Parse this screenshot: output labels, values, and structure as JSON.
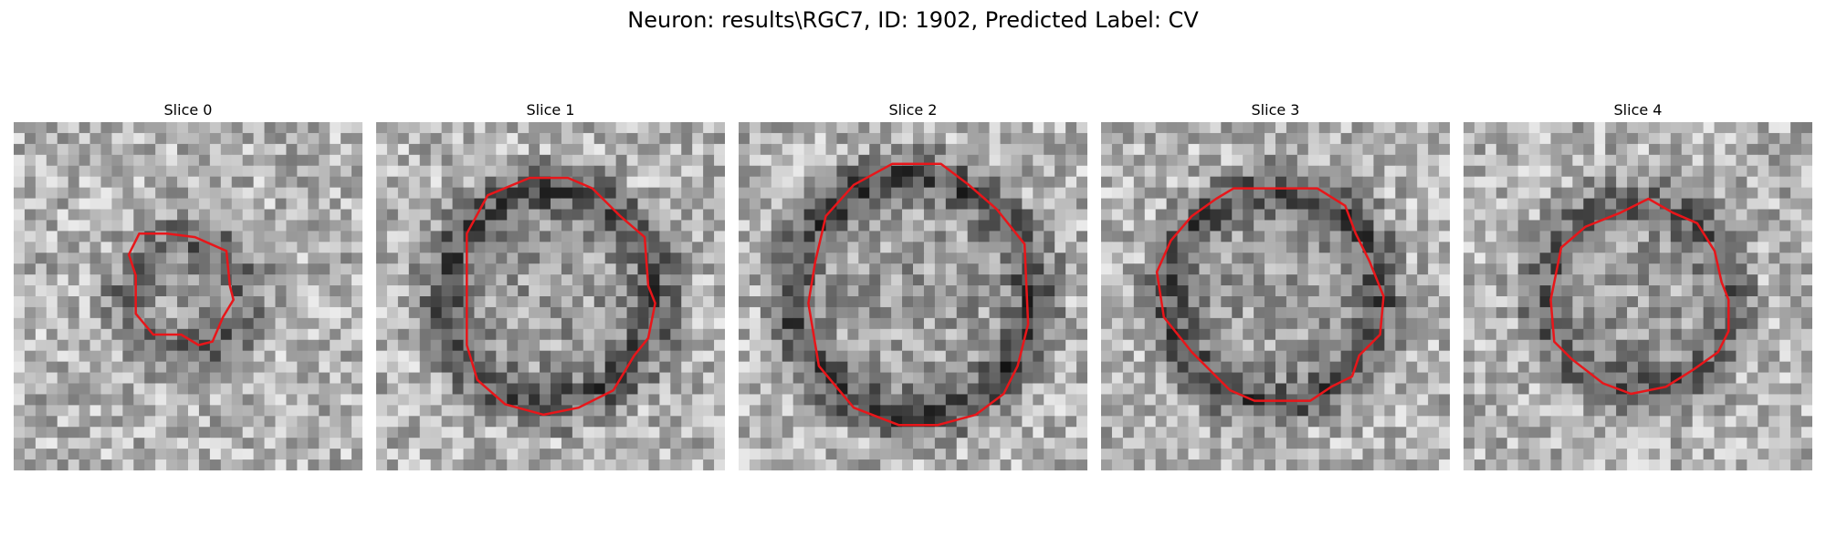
{
  "figure": {
    "title": "Neuron: results\\RGC7, ID: 1902, Predicted Label: CV",
    "contour_color": "#e8161a"
  },
  "panels": [
    {
      "label": "Slice 0",
      "seed": 11,
      "ring": 0.38,
      "radius": 0.16,
      "contour": [
        [
          0.36,
          0.32
        ],
        [
          0.44,
          0.32
        ],
        [
          0.52,
          0.33
        ],
        [
          0.61,
          0.37
        ],
        [
          0.62,
          0.47
        ],
        [
          0.63,
          0.51
        ],
        [
          0.6,
          0.56
        ],
        [
          0.57,
          0.63
        ],
        [
          0.53,
          0.64
        ],
        [
          0.48,
          0.61
        ],
        [
          0.4,
          0.61
        ],
        [
          0.35,
          0.55
        ],
        [
          0.35,
          0.44
        ],
        [
          0.33,
          0.38
        ]
      ]
    },
    {
      "label": "Slice 1",
      "seed": 23,
      "ring": 0.55,
      "radius": 0.3,
      "contour": [
        [
          0.44,
          0.16
        ],
        [
          0.55,
          0.16
        ],
        [
          0.62,
          0.19
        ],
        [
          0.7,
          0.27
        ],
        [
          0.77,
          0.33
        ],
        [
          0.78,
          0.47
        ],
        [
          0.8,
          0.52
        ],
        [
          0.78,
          0.62
        ],
        [
          0.74,
          0.67
        ],
        [
          0.68,
          0.77
        ],
        [
          0.58,
          0.82
        ],
        [
          0.48,
          0.84
        ],
        [
          0.37,
          0.81
        ],
        [
          0.29,
          0.74
        ],
        [
          0.26,
          0.64
        ],
        [
          0.26,
          0.32
        ],
        [
          0.32,
          0.21
        ]
      ]
    },
    {
      "label": "Slice 2",
      "seed": 37,
      "ring": 0.6,
      "radius": 0.34,
      "contour": [
        [
          0.44,
          0.12
        ],
        [
          0.58,
          0.12
        ],
        [
          0.66,
          0.18
        ],
        [
          0.74,
          0.25
        ],
        [
          0.82,
          0.35
        ],
        [
          0.83,
          0.58
        ],
        [
          0.8,
          0.7
        ],
        [
          0.76,
          0.78
        ],
        [
          0.68,
          0.84
        ],
        [
          0.57,
          0.87
        ],
        [
          0.46,
          0.87
        ],
        [
          0.33,
          0.82
        ],
        [
          0.23,
          0.7
        ],
        [
          0.2,
          0.52
        ],
        [
          0.22,
          0.4
        ],
        [
          0.25,
          0.27
        ],
        [
          0.33,
          0.18
        ]
      ]
    },
    {
      "label": "Slice 3",
      "seed": 53,
      "ring": 0.55,
      "radius": 0.3,
      "contour": [
        [
          0.38,
          0.19
        ],
        [
          0.62,
          0.19
        ],
        [
          0.7,
          0.24
        ],
        [
          0.73,
          0.32
        ],
        [
          0.77,
          0.4
        ],
        [
          0.81,
          0.5
        ],
        [
          0.8,
          0.61
        ],
        [
          0.74,
          0.67
        ],
        [
          0.72,
          0.73
        ],
        [
          0.66,
          0.76
        ],
        [
          0.6,
          0.8
        ],
        [
          0.44,
          0.8
        ],
        [
          0.37,
          0.77
        ],
        [
          0.26,
          0.66
        ],
        [
          0.18,
          0.56
        ],
        [
          0.16,
          0.43
        ],
        [
          0.2,
          0.34
        ],
        [
          0.26,
          0.27
        ],
        [
          0.33,
          0.22
        ]
      ]
    },
    {
      "label": "Slice 4",
      "seed": 71,
      "ring": 0.45,
      "radius": 0.26,
      "contour": [
        [
          0.45,
          0.26
        ],
        [
          0.53,
          0.22
        ],
        [
          0.6,
          0.26
        ],
        [
          0.67,
          0.29
        ],
        [
          0.72,
          0.37
        ],
        [
          0.74,
          0.46
        ],
        [
          0.76,
          0.51
        ],
        [
          0.76,
          0.6
        ],
        [
          0.73,
          0.66
        ],
        [
          0.66,
          0.71
        ],
        [
          0.58,
          0.76
        ],
        [
          0.48,
          0.78
        ],
        [
          0.4,
          0.75
        ],
        [
          0.31,
          0.68
        ],
        [
          0.26,
          0.63
        ],
        [
          0.25,
          0.51
        ],
        [
          0.28,
          0.36
        ],
        [
          0.35,
          0.3
        ]
      ]
    }
  ]
}
